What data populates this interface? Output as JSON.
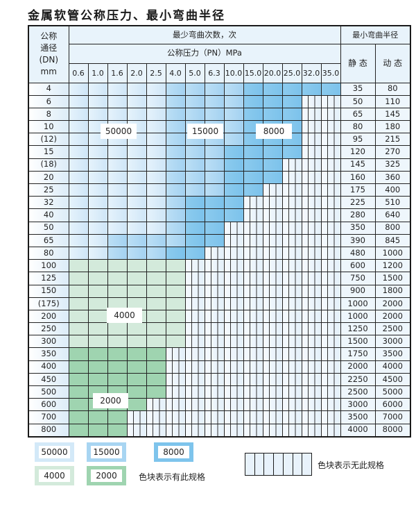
{
  "title": "金属软管公称压力、最小弯曲半径",
  "header": {
    "dn_label": [
      "公称",
      "通径",
      "(DN)",
      "mm"
    ],
    "cycles_label": "最少弯曲次数，次",
    "pressure_label": "公称压力（PN）MPa",
    "radius_label": "最小弯曲半径",
    "static_label": "静 态",
    "dynamic_label": "动 态",
    "pressures": [
      "0.6",
      "1.0",
      "1.6",
      "2.0",
      "2.5",
      "4.0",
      "5.0",
      "6.3",
      "10.0",
      "15.0",
      "20.0",
      "25.0",
      "32.0",
      "35.0"
    ]
  },
  "fill_legend": {
    "L": "50000",
    "M": "15000",
    "D": "8000",
    "G": "4000",
    "H": "2000",
    "N": "无此规格"
  },
  "colors": {
    "L": "#d3e9f8",
    "M": "#a8d5f2",
    "D": "#7ec4ec",
    "G": "#d3eadb",
    "H": "#9fd4b0"
  },
  "rows": [
    {
      "dn": "4",
      "static": "35",
      "dynamic": "80",
      "fill": "LLLLLMMMMDDDDD"
    },
    {
      "dn": "6",
      "static": "50",
      "dynamic": "110",
      "fill": "LLLLLMMMMDDDNN"
    },
    {
      "dn": "8",
      "static": "65",
      "dynamic": "145",
      "fill": "LLLLLMMMMDDDNN"
    },
    {
      "dn": "10",
      "static": "80",
      "dynamic": "180",
      "fill": "LLLLLMMMMDDDNN"
    },
    {
      "dn": "(12)",
      "static": "95",
      "dynamic": "215",
      "fill": "LLLLLMMMMDDDNN"
    },
    {
      "dn": "15",
      "static": "120",
      "dynamic": "270",
      "fill": "LLLLLMMMDDDDNN"
    },
    {
      "dn": "(18)",
      "static": "145",
      "dynamic": "325",
      "fill": "LLLLLMMMDDDNNN"
    },
    {
      "dn": "20",
      "static": "160",
      "dynamic": "360",
      "fill": "LLLLLMMMDDDNNN"
    },
    {
      "dn": "25",
      "static": "175",
      "dynamic": "400",
      "fill": "LLLLLMMMDDNNNN"
    },
    {
      "dn": "32",
      "static": "225",
      "dynamic": "510",
      "fill": "LLLLLMDDDNNNNN"
    },
    {
      "dn": "40",
      "static": "280",
      "dynamic": "640",
      "fill": "LLLLLMDDDNNNNN"
    },
    {
      "dn": "50",
      "static": "350",
      "dynamic": "800",
      "fill": "LLLLLMDDNNNNNN"
    },
    {
      "dn": "65",
      "static": "390",
      "dynamic": "845",
      "fill": "LLMMMMDDNNNNNN"
    },
    {
      "dn": "80",
      "static": "480",
      "dynamic": "1000",
      "fill": "LLMMMDDNNNNNNN"
    },
    {
      "dn": "100",
      "static": "600",
      "dynamic": "1200",
      "fill": "GGGGGGNNNNNNNN"
    },
    {
      "dn": "125",
      "static": "750",
      "dynamic": "1500",
      "fill": "GGGGGGNNNNNNNN"
    },
    {
      "dn": "150",
      "static": "900",
      "dynamic": "1800",
      "fill": "GGGGGGNNNNNNNN"
    },
    {
      "dn": "(175)",
      "static": "1000",
      "dynamic": "2000",
      "fill": "GGGGGGNNNNNNNN"
    },
    {
      "dn": "200",
      "static": "1000",
      "dynamic": "2000",
      "fill": "GGGGGGNNNNNNNN"
    },
    {
      "dn": "250",
      "static": "1250",
      "dynamic": "2500",
      "fill": "GGGGGGNNNNNNNN"
    },
    {
      "dn": "300",
      "static": "1500",
      "dynamic": "3000",
      "fill": "GGGGGGNNNNNNNN"
    },
    {
      "dn": "350",
      "static": "1750",
      "dynamic": "3500",
      "fill": "HHHHHNNNNNNNNN"
    },
    {
      "dn": "400",
      "static": "2000",
      "dynamic": "4000",
      "fill": "HHHHHNNNNNNNNN"
    },
    {
      "dn": "450",
      "static": "2250",
      "dynamic": "4500",
      "fill": "HHHHHNNNNNNNNN"
    },
    {
      "dn": "500",
      "static": "2500",
      "dynamic": "5000",
      "fill": "HHHHHNNNNNNNNN"
    },
    {
      "dn": "600",
      "static": "3000",
      "dynamic": "6000",
      "fill": "HHHHNNNNNNNNNN"
    },
    {
      "dn": "700",
      "static": "3500",
      "dynamic": "7000",
      "fill": "HHHNNNNNNNNNNN"
    },
    {
      "dn": "800",
      "static": "4000",
      "dynamic": "8000",
      "fill": "HHHNNNNNNNNNNN"
    }
  ],
  "zone_labels": {
    "z50000": "50000",
    "z15000": "15000",
    "z8000": "8000",
    "z4000": "4000",
    "z2000": "2000"
  },
  "legend": {
    "items": [
      "50000",
      "15000",
      "8000",
      "4000",
      "2000"
    ],
    "has_spec_text": "色块表示有此规格",
    "no_spec_text": "色块表示无此规格"
  }
}
